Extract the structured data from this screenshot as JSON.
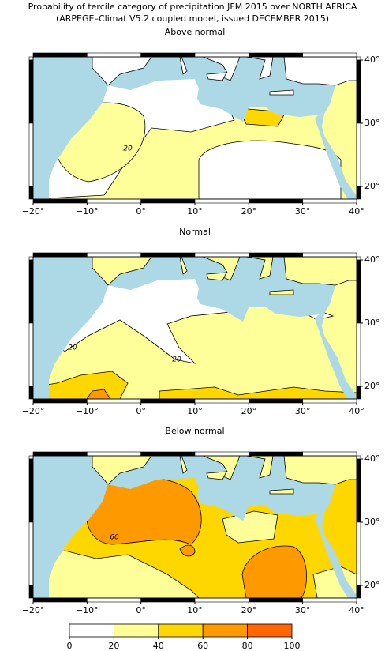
{
  "title": "Probability of tercile category of precipitation JFM 2015 over NORTH AFRICA",
  "subtitle": "(ARPEGE–Climat V5.2 coupled model, issued DECEMBER 2015)",
  "xlim": [
    -20,
    40
  ],
  "ylim": [
    18,
    40.5
  ],
  "xticks": [
    {
      "value": -20,
      "label": "−20°"
    },
    {
      "value": -10,
      "label": "−10°"
    },
    {
      "value": 0,
      "label": "0°"
    },
    {
      "value": 10,
      "label": "10°"
    },
    {
      "value": 20,
      "label": "20°"
    },
    {
      "value": 30,
      "label": "30°"
    },
    {
      "value": 40,
      "label": "40°"
    }
  ],
  "yticks": [
    {
      "value": 20,
      "label": "20°"
    },
    {
      "value": 30,
      "label": "30°"
    },
    {
      "value": 40,
      "label": "40°"
    }
  ],
  "panels": [
    {
      "title": "Above normal",
      "contour_labels": [
        "20"
      ]
    },
    {
      "title": "Normal",
      "contour_labels": [
        "20",
        "20"
      ]
    },
    {
      "title": "Below normal",
      "contour_labels": [
        "60"
      ]
    }
  ],
  "colorbar": {
    "ticks": [
      0,
      20,
      40,
      60,
      80,
      100
    ],
    "colors": [
      "#ffffff",
      "#ffff99",
      "#ffd700",
      "#ff9900",
      "#ff6600"
    ]
  }
}
